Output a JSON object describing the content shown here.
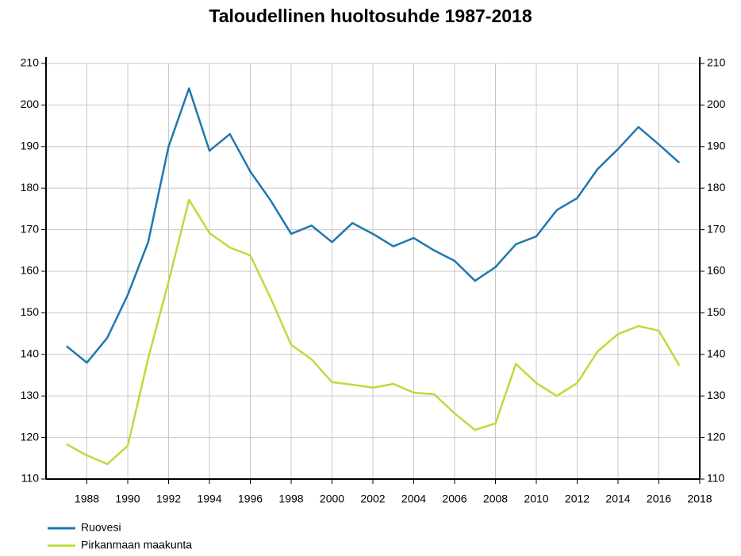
{
  "chart_data": {
    "type": "line",
    "title": "Taloudellinen huoltosuhde 1987-2018",
    "x": [
      1987,
      1988,
      1989,
      1990,
      1991,
      1992,
      1993,
      1994,
      1995,
      1996,
      1997,
      1998,
      1999,
      2000,
      2001,
      2002,
      2003,
      2004,
      2005,
      2006,
      2007,
      2008,
      2009,
      2010,
      2011,
      2012,
      2013,
      2014,
      2015,
      2016,
      2017
    ],
    "series": [
      {
        "name": "Ruovesi",
        "color": "#1f78b0",
        "values": [
          142,
          138,
          144,
          154.3,
          167,
          190,
          204,
          189,
          193,
          184,
          177,
          169,
          171,
          167,
          171.6,
          169,
          166,
          168,
          165,
          162.5,
          157.7,
          161,
          166.5,
          168.4,
          174.7,
          177.6,
          184.6,
          189.4,
          194.7,
          190.5,
          186.1
        ]
      },
      {
        "name": "Pirkanmaan maakunta",
        "color": "#c3d83b",
        "values": [
          118.4,
          115.7,
          113.6,
          118,
          139,
          157.5,
          177.2,
          169.2,
          165.7,
          163.8,
          153.5,
          142.3,
          138.8,
          133.3,
          132.7,
          132,
          132.9,
          130.8,
          130.4,
          125.8,
          121.8,
          123.4,
          137.7,
          133.1,
          130,
          133.1,
          140.7,
          144.9,
          146.8,
          145.7,
          137.3
        ]
      }
    ],
    "xlim": [
      1986,
      2018
    ],
    "xticks": [
      1988,
      1990,
      1992,
      1994,
      1996,
      1998,
      2000,
      2002,
      2004,
      2006,
      2008,
      2010,
      2012,
      2014,
      2016,
      2018
    ],
    "ylim": [
      110,
      210
    ],
    "yticks": [
      110,
      120,
      130,
      140,
      150,
      160,
      170,
      180,
      190,
      200,
      210
    ],
    "y2lim": [
      110,
      210
    ],
    "y2ticks": [
      110,
      120,
      130,
      140,
      150,
      160,
      170,
      180,
      190,
      200,
      210
    ],
    "grid": true,
    "legend": "bottom-left"
  }
}
